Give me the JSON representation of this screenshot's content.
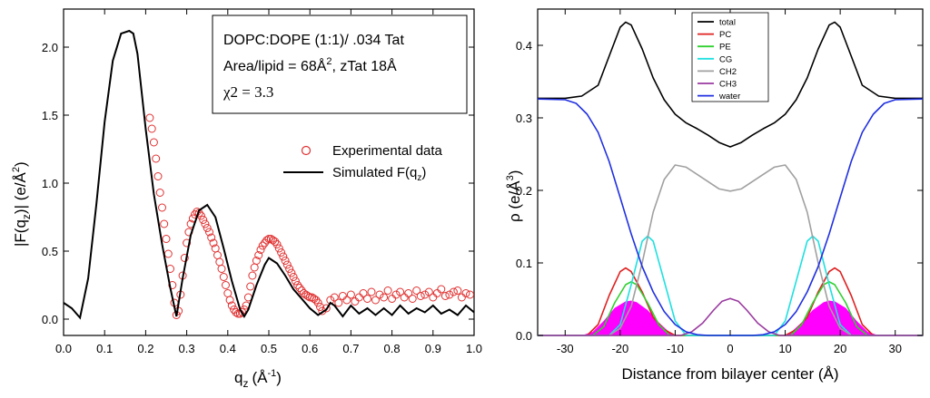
{
  "chart_data": [
    {
      "type": "scatter",
      "title": "",
      "xlabel_main": "q",
      "xlabel_sub": "z",
      "xlabel_unit": "(Å",
      "xlabel_sup": "-1",
      "xlabel_close": ")",
      "ylabel_a": "|F(q",
      "ylabel_sub": "z",
      "ylabel_b": ")| (e/Å",
      "ylabel_sup": "2",
      "ylabel_c": ")",
      "xlim": [
        0.0,
        1.0
      ],
      "ylim": [
        -0.12,
        2.28
      ],
      "xticks": [
        "0.0",
        "0.1",
        "0.2",
        "0.3",
        "0.4",
        "0.5",
        "0.6",
        "0.7",
        "0.8",
        "0.9",
        "1.0"
      ],
      "yticks": [
        "0.0",
        "0.5",
        "1.0",
        "1.5",
        "2.0"
      ],
      "annotation": {
        "line1": "DOPC:DOPE (1:1)/ .034 Tat",
        "line2_a": "Area/lipid = 68Å",
        "line2_sup": "2",
        "line2_b": ", zTat 18Å",
        "line3": "χ2 = 3.3"
      },
      "legend": {
        "experimental": "Experimental data",
        "simulated_a": "Simulated F(q",
        "simulated_sub": "z",
        "simulated_b": ")"
      },
      "series": [
        {
          "name": "Simulated F(qz)",
          "style": "line",
          "color": "#000000",
          "x": [
            0.0,
            0.02,
            0.04,
            0.06,
            0.08,
            0.1,
            0.12,
            0.14,
            0.16,
            0.17,
            0.18,
            0.2,
            0.22,
            0.24,
            0.26,
            0.275,
            0.29,
            0.31,
            0.33,
            0.35,
            0.37,
            0.39,
            0.41,
            0.43,
            0.44,
            0.45,
            0.47,
            0.49,
            0.5,
            0.52,
            0.54,
            0.56,
            0.58,
            0.6,
            0.62,
            0.64,
            0.65,
            0.66,
            0.68,
            0.7,
            0.72,
            0.74,
            0.76,
            0.78,
            0.8,
            0.82,
            0.84,
            0.86,
            0.88,
            0.9,
            0.92,
            0.94,
            0.96,
            0.98,
            1.0
          ],
          "y": [
            0.12,
            0.08,
            0.01,
            0.3,
            0.85,
            1.45,
            1.9,
            2.1,
            2.12,
            2.1,
            1.95,
            1.4,
            0.92,
            0.55,
            0.23,
            0.02,
            0.3,
            0.62,
            0.8,
            0.84,
            0.75,
            0.52,
            0.28,
            0.07,
            0.02,
            0.07,
            0.25,
            0.4,
            0.45,
            0.41,
            0.32,
            0.22,
            0.15,
            0.08,
            0.03,
            0.07,
            0.12,
            0.1,
            0.02,
            0.1,
            0.04,
            0.08,
            0.03,
            0.08,
            0.03,
            0.1,
            0.04,
            0.08,
            0.05,
            0.1,
            0.04,
            0.07,
            0.03,
            0.1,
            0.05
          ]
        },
        {
          "name": "Experimental data",
          "style": "markers",
          "color": "#e03030",
          "x": [
            0.21,
            0.215,
            0.22,
            0.225,
            0.23,
            0.235,
            0.24,
            0.245,
            0.25,
            0.255,
            0.26,
            0.265,
            0.27,
            0.275,
            0.28,
            0.285,
            0.29,
            0.295,
            0.3,
            0.305,
            0.31,
            0.315,
            0.32,
            0.325,
            0.33,
            0.335,
            0.34,
            0.345,
            0.35,
            0.355,
            0.36,
            0.365,
            0.37,
            0.375,
            0.38,
            0.385,
            0.39,
            0.395,
            0.4,
            0.405,
            0.41,
            0.415,
            0.42,
            0.425,
            0.43,
            0.435,
            0.44,
            0.445,
            0.45,
            0.455,
            0.46,
            0.465,
            0.47,
            0.475,
            0.48,
            0.485,
            0.49,
            0.495,
            0.5,
            0.505,
            0.51,
            0.515,
            0.52,
            0.525,
            0.53,
            0.535,
            0.54,
            0.545,
            0.55,
            0.555,
            0.56,
            0.565,
            0.57,
            0.575,
            0.58,
            0.585,
            0.59,
            0.595,
            0.6,
            0.605,
            0.61,
            0.615,
            0.62,
            0.625,
            0.63,
            0.64,
            0.65,
            0.66,
            0.67,
            0.68,
            0.69,
            0.7,
            0.71,
            0.72,
            0.73,
            0.74,
            0.75,
            0.76,
            0.77,
            0.78,
            0.79,
            0.8,
            0.81,
            0.82,
            0.83,
            0.84,
            0.85,
            0.86,
            0.87,
            0.88,
            0.89,
            0.9,
            0.91,
            0.92,
            0.93,
            0.94,
            0.95,
            0.96,
            0.97,
            0.98,
            0.99
          ],
          "y": [
            1.48,
            1.4,
            1.3,
            1.18,
            1.05,
            0.93,
            0.82,
            0.7,
            0.59,
            0.48,
            0.37,
            0.25,
            0.12,
            0.03,
            0.06,
            0.18,
            0.32,
            0.45,
            0.56,
            0.64,
            0.7,
            0.74,
            0.77,
            0.79,
            0.78,
            0.76,
            0.73,
            0.7,
            0.67,
            0.64,
            0.6,
            0.56,
            0.52,
            0.47,
            0.42,
            0.37,
            0.31,
            0.25,
            0.19,
            0.14,
            0.1,
            0.07,
            0.05,
            0.04,
            0.04,
            0.05,
            0.07,
            0.1,
            0.16,
            0.24,
            0.32,
            0.38,
            0.43,
            0.47,
            0.51,
            0.54,
            0.56,
            0.58,
            0.59,
            0.59,
            0.58,
            0.57,
            0.55,
            0.52,
            0.49,
            0.46,
            0.43,
            0.4,
            0.37,
            0.34,
            0.31,
            0.28,
            0.25,
            0.23,
            0.21,
            0.19,
            0.18,
            0.17,
            0.16,
            0.16,
            0.15,
            0.14,
            0.12,
            0.09,
            0.06,
            0.08,
            0.14,
            0.16,
            0.12,
            0.17,
            0.14,
            0.18,
            0.13,
            0.16,
            0.19,
            0.15,
            0.2,
            0.14,
            0.18,
            0.16,
            0.21,
            0.15,
            0.18,
            0.2,
            0.16,
            0.19,
            0.15,
            0.21,
            0.17,
            0.18,
            0.2,
            0.16,
            0.19,
            0.22,
            0.17,
            0.18,
            0.2,
            0.21,
            0.16,
            0.19,
            0.18
          ]
        }
      ]
    },
    {
      "type": "area",
      "title": "",
      "xlabel": "Distance from bilayer center (Å)",
      "ylabel_a": "ρ (e/Å",
      "ylabel_sup": "3",
      "ylabel_b": ")",
      "xlim": [
        -35,
        35
      ],
      "ylim": [
        0.0,
        0.45
      ],
      "xticks": [
        -30,
        -20,
        -10,
        0,
        10,
        20,
        30
      ],
      "yticks": [
        "0.0",
        "0.1",
        "0.2",
        "0.3",
        "0.4"
      ],
      "legend": [
        "total",
        "PC",
        "PE",
        "CG",
        "CH2",
        "CH3",
        "water"
      ],
      "series": [
        {
          "name": "total",
          "color": "#000000",
          "x": [
            -35,
            -30,
            -27,
            -24,
            -22,
            -20,
            -19,
            -18,
            -16,
            -14,
            -12,
            -10,
            -8,
            -6,
            -4,
            -2,
            0,
            2,
            4,
            6,
            8,
            10,
            12,
            14,
            16,
            18,
            19,
            20,
            22,
            24,
            27,
            30,
            35
          ],
          "y": [
            0.327,
            0.327,
            0.33,
            0.345,
            0.385,
            0.425,
            0.432,
            0.428,
            0.395,
            0.355,
            0.325,
            0.305,
            0.293,
            0.285,
            0.276,
            0.266,
            0.26,
            0.266,
            0.276,
            0.285,
            0.293,
            0.305,
            0.325,
            0.355,
            0.395,
            0.428,
            0.432,
            0.425,
            0.385,
            0.345,
            0.33,
            0.327,
            0.327
          ]
        },
        {
          "name": "PC",
          "color": "#e02020",
          "x": [
            -35,
            -26,
            -24,
            -22,
            -20,
            -19,
            -18,
            -16,
            -14,
            -12,
            -10,
            0,
            10,
            12,
            14,
            16,
            18,
            19,
            20,
            22,
            24,
            26,
            35
          ],
          "y": [
            0,
            0,
            0.015,
            0.055,
            0.088,
            0.093,
            0.088,
            0.06,
            0.025,
            0.008,
            0,
            0,
            0,
            0.008,
            0.025,
            0.06,
            0.088,
            0.093,
            0.088,
            0.055,
            0.015,
            0,
            0
          ]
        },
        {
          "name": "PE",
          "color": "#30d030",
          "x": [
            -35,
            -25,
            -23,
            -21,
            -19,
            -18,
            -17,
            -15,
            -13,
            -11,
            0,
            11,
            13,
            15,
            17,
            18,
            19,
            21,
            23,
            25,
            35
          ],
          "y": [
            0,
            0,
            0.012,
            0.045,
            0.07,
            0.074,
            0.07,
            0.045,
            0.015,
            0,
            0,
            0,
            0.015,
            0.045,
            0.07,
            0.074,
            0.07,
            0.045,
            0.012,
            0,
            0
          ]
        },
        {
          "name": "CG",
          "color": "#20e0e0",
          "x": [
            -35,
            -22,
            -20,
            -18,
            -16,
            -15,
            -14,
            -12,
            -10,
            -8,
            0,
            8,
            10,
            12,
            14,
            15,
            16,
            18,
            20,
            22,
            35
          ],
          "y": [
            0,
            0,
            0.015,
            0.07,
            0.13,
            0.137,
            0.13,
            0.075,
            0.02,
            0,
            0,
            0,
            0.02,
            0.075,
            0.13,
            0.137,
            0.13,
            0.07,
            0.015,
            0,
            0
          ]
        },
        {
          "name": "CH2",
          "color": "#a0a0a0",
          "x": [
            -35,
            -22,
            -20,
            -18,
            -16,
            -14,
            -12,
            -10,
            -8,
            -6,
            -4,
            -2,
            0,
            2,
            4,
            6,
            8,
            10,
            12,
            14,
            16,
            18,
            20,
            22,
            35
          ],
          "y": [
            0,
            0,
            0.01,
            0.04,
            0.1,
            0.17,
            0.215,
            0.235,
            0.232,
            0.222,
            0.212,
            0.202,
            0.199,
            0.202,
            0.212,
            0.222,
            0.232,
            0.235,
            0.215,
            0.17,
            0.1,
            0.04,
            0.01,
            0,
            0
          ]
        },
        {
          "name": "CH3",
          "color": "#9a3aa0",
          "x": [
            -35,
            -9,
            -7,
            -5,
            -3,
            -1.5,
            0,
            1.5,
            3,
            5,
            7,
            9,
            35
          ],
          "y": [
            0,
            0,
            0.005,
            0.017,
            0.035,
            0.047,
            0.051,
            0.047,
            0.035,
            0.017,
            0.005,
            0,
            0
          ]
        },
        {
          "name": "water",
          "color": "#2030e0",
          "x": [
            -35,
            -30,
            -28,
            -26,
            -24,
            -22,
            -20,
            -18,
            -16,
            -14,
            -12,
            -10,
            -8,
            -6,
            -4,
            0,
            4,
            6,
            8,
            10,
            12,
            14,
            16,
            18,
            20,
            22,
            24,
            26,
            28,
            30,
            35
          ],
          "y": [
            0.326,
            0.325,
            0.32,
            0.305,
            0.28,
            0.24,
            0.19,
            0.14,
            0.095,
            0.06,
            0.033,
            0.015,
            0.005,
            0.001,
            0,
            0,
            0,
            0.001,
            0.005,
            0.015,
            0.033,
            0.06,
            0.095,
            0.14,
            0.19,
            0.24,
            0.28,
            0.305,
            0.32,
            0.325,
            0.326
          ]
        },
        {
          "name": "fill",
          "color": "#ff00ff",
          "x": [
            -35,
            -27,
            -25,
            -23,
            -21,
            -19,
            -18,
            -17,
            -15,
            -13,
            -11,
            -10,
            10,
            11,
            13,
            15,
            17,
            18,
            19,
            21,
            23,
            25,
            27,
            35
          ],
          "y": [
            0,
            0,
            0.005,
            0.02,
            0.038,
            0.047,
            0.048,
            0.046,
            0.035,
            0.018,
            0.004,
            0,
            0,
            0.004,
            0.018,
            0.035,
            0.046,
            0.048,
            0.047,
            0.038,
            0.02,
            0.005,
            0,
            0
          ]
        }
      ]
    }
  ]
}
